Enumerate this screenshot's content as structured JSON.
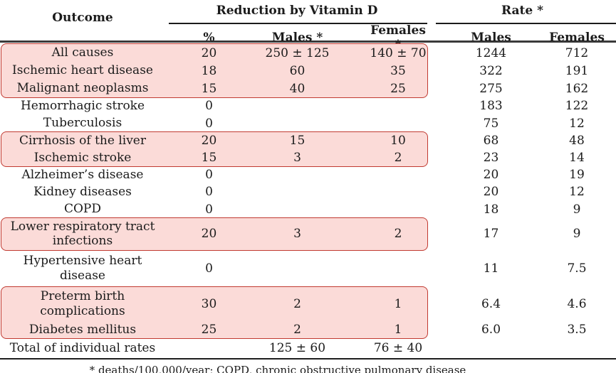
{
  "table": {
    "header": {
      "outcome": "Outcome",
      "group_reduction": "Reduction by Vitamin D",
      "group_rate": "Rate *",
      "sub": [
        "%",
        "Males *",
        "Females *",
        "Males",
        "Females"
      ]
    },
    "rows": [
      {
        "outcome": "All causes",
        "pct": "20",
        "males": "250 ± 125",
        "females": "140 ± 70",
        "rate_males": "1244",
        "rate_females": "712",
        "highlighted": true
      },
      {
        "outcome": "Ischemic heart disease",
        "pct": "18",
        "males": "60",
        "females": "35",
        "rate_males": "322",
        "rate_females": "191",
        "highlighted": true
      },
      {
        "outcome": "Malignant neoplasms",
        "pct": "15",
        "males": "40",
        "females": "25",
        "rate_males": "275",
        "rate_females": "162",
        "highlighted": true
      },
      {
        "outcome": "Hemorrhagic stroke",
        "pct": "0",
        "males": "",
        "females": "",
        "rate_males": "183",
        "rate_females": "122",
        "highlighted": false
      },
      {
        "outcome": "Tuberculosis",
        "pct": "0",
        "males": "",
        "females": "",
        "rate_males": "75",
        "rate_females": "12",
        "highlighted": false
      },
      {
        "outcome": "Cirrhosis of the liver",
        "pct": "20",
        "males": "15",
        "females": "10",
        "rate_males": "68",
        "rate_females": "48",
        "highlighted": true
      },
      {
        "outcome": "Ischemic stroke",
        "pct": "15",
        "males": "3",
        "females": "2",
        "rate_males": "23",
        "rate_females": "14",
        "highlighted": true
      },
      {
        "outcome": "Alzheimer’s disease",
        "pct": "0",
        "males": "",
        "females": "",
        "rate_males": "20",
        "rate_females": "19",
        "highlighted": false
      },
      {
        "outcome": "Kidney diseases",
        "pct": "0",
        "males": "",
        "females": "",
        "rate_males": "20",
        "rate_females": "12",
        "highlighted": false
      },
      {
        "outcome": "COPD",
        "pct": "0",
        "males": "",
        "females": "",
        "rate_males": "18",
        "rate_females": "9",
        "highlighted": false
      },
      {
        "outcome": "Lower respiratory tract\ninfections",
        "pct": "20",
        "males": "3",
        "females": "2",
        "rate_males": "17",
        "rate_females": "9",
        "highlighted": true
      },
      {
        "outcome": "Hypertensive heart\ndisease",
        "pct": "0",
        "males": "",
        "females": "",
        "rate_males": "11",
        "rate_females": "7.5",
        "highlighted": false
      },
      {
        "outcome": "Preterm birth\ncomplications",
        "pct": "30",
        "males": "2",
        "females": "1",
        "rate_males": "6.4",
        "rate_females": "4.6",
        "highlighted": true
      },
      {
        "outcome": "Diabetes mellitus",
        "pct": "25",
        "males": "2",
        "females": "1",
        "rate_males": "6.0",
        "rate_females": "3.5",
        "highlighted": true
      },
      {
        "outcome": "Total of individual rates",
        "pct": "",
        "males": "125 ± 60",
        "females": "76 ± 40",
        "rate_males": "",
        "rate_females": "",
        "highlighted": false
      }
    ]
  },
  "footnote": "* deaths/100,000/year; COPD, chronic obstructive pulmonary disease",
  "colors": {
    "highlight_bg": "#fbdbd8",
    "highlight_border": "#c13a31"
  }
}
